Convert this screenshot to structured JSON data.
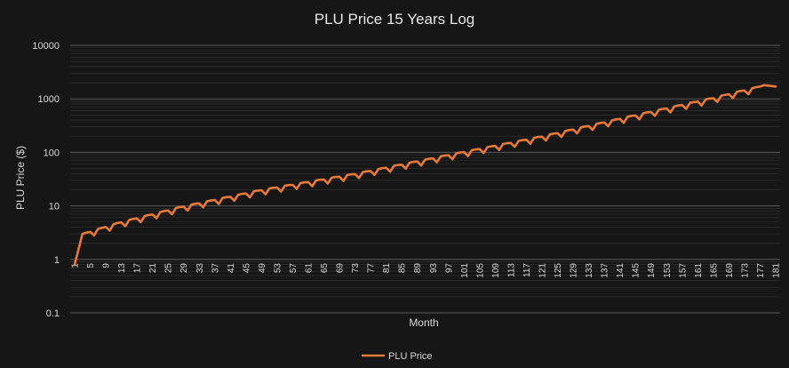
{
  "chart_data": {
    "type": "line",
    "title": "PLU Price 15 Years Log",
    "xlabel": "Month",
    "ylabel": "PLU Price  ($)",
    "y_scale": "log",
    "ylim": [
      0.1,
      10000
    ],
    "xlim": [
      1,
      181
    ],
    "y_ticks": [
      "0.1",
      "1",
      "10",
      "100",
      "1000",
      "10000"
    ],
    "x_tick_start": 1,
    "x_tick_step": 4,
    "grid": true,
    "legend_position": "bottom",
    "colors": {
      "series": "#e8793a",
      "background": "#161616",
      "grid": "#5a5a5a",
      "minor_grid": "#2e2e2e"
    },
    "series": [
      {
        "name": "PLU Price",
        "description_points": [
          {
            "x": 1,
            "y": 0.8
          },
          {
            "x": 3,
            "y": 3.0
          },
          {
            "x": 12,
            "y": 4.8
          },
          {
            "x": 28,
            "y": 9.5
          },
          {
            "x": 49,
            "y": 20
          },
          {
            "x": 73,
            "y": 40
          },
          {
            "x": 97,
            "y": 90
          },
          {
            "x": 121,
            "y": 200
          },
          {
            "x": 145,
            "y": 500
          },
          {
            "x": 165,
            "y": 1050
          },
          {
            "x": 178,
            "y": 1800
          },
          {
            "x": 181,
            "y": 1700
          }
        ],
        "seasonal_period": 4,
        "seasonal_dip_factor": 0.8
      }
    ]
  }
}
